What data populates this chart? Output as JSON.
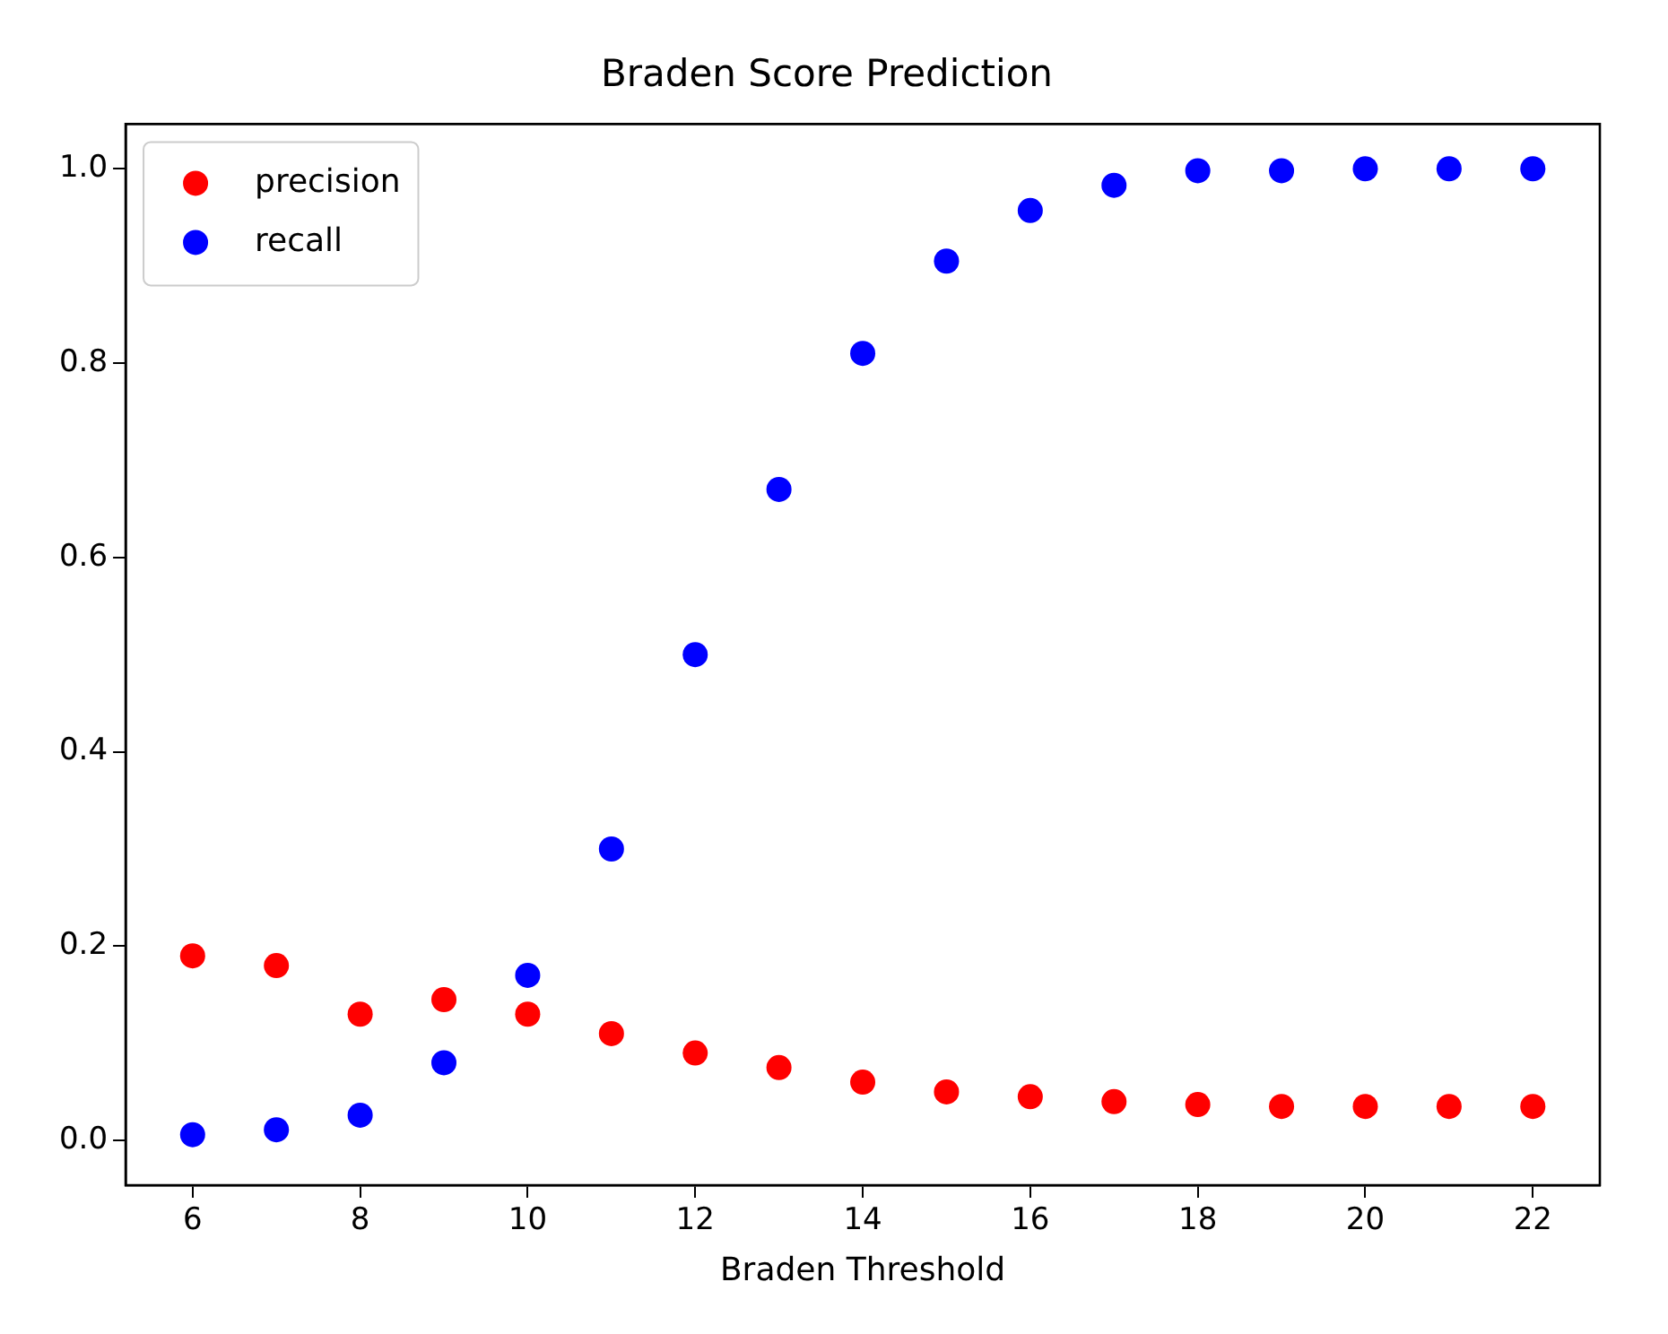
{
  "chart_data": {
    "type": "scatter",
    "title": "Braden Score Prediction",
    "xlabel": "Braden Threshold",
    "x": [
      6,
      7,
      8,
      9,
      10,
      11,
      12,
      13,
      14,
      15,
      16,
      17,
      18,
      19,
      20,
      21,
      22
    ],
    "series": [
      {
        "name": "precision",
        "color": "#ff0000",
        "values": [
          0.19,
          0.18,
          0.13,
          0.145,
          0.13,
          0.11,
          0.09,
          0.075,
          0.06,
          0.05,
          0.045,
          0.04,
          0.037,
          0.035,
          0.035,
          0.035,
          0.035
        ]
      },
      {
        "name": "recall",
        "color": "#0000ff",
        "values": [
          0.006,
          0.011,
          0.026,
          0.08,
          0.17,
          0.3,
          0.5,
          0.67,
          0.81,
          0.905,
          0.957,
          0.983,
          0.998,
          0.998,
          1.0,
          1.0,
          1.0
        ]
      }
    ],
    "xlim": [
      5.2,
      22.8
    ],
    "xticks": [
      6,
      8,
      10,
      12,
      14,
      16,
      18,
      20,
      22
    ],
    "ylim": [
      -0.046,
      1.046
    ],
    "yticks": [
      {
        "value": 0,
        "label": "0.0"
      },
      {
        "value": 0.2,
        "label": "0.2"
      },
      {
        "value": 0.4,
        "label": "0.4"
      },
      {
        "value": 0.6,
        "label": "0.6"
      },
      {
        "value": 0.8,
        "label": "0.8"
      },
      {
        "value": 1,
        "label": "1.0"
      }
    ],
    "legend": "top left",
    "marker": "circle",
    "grid": false
  }
}
